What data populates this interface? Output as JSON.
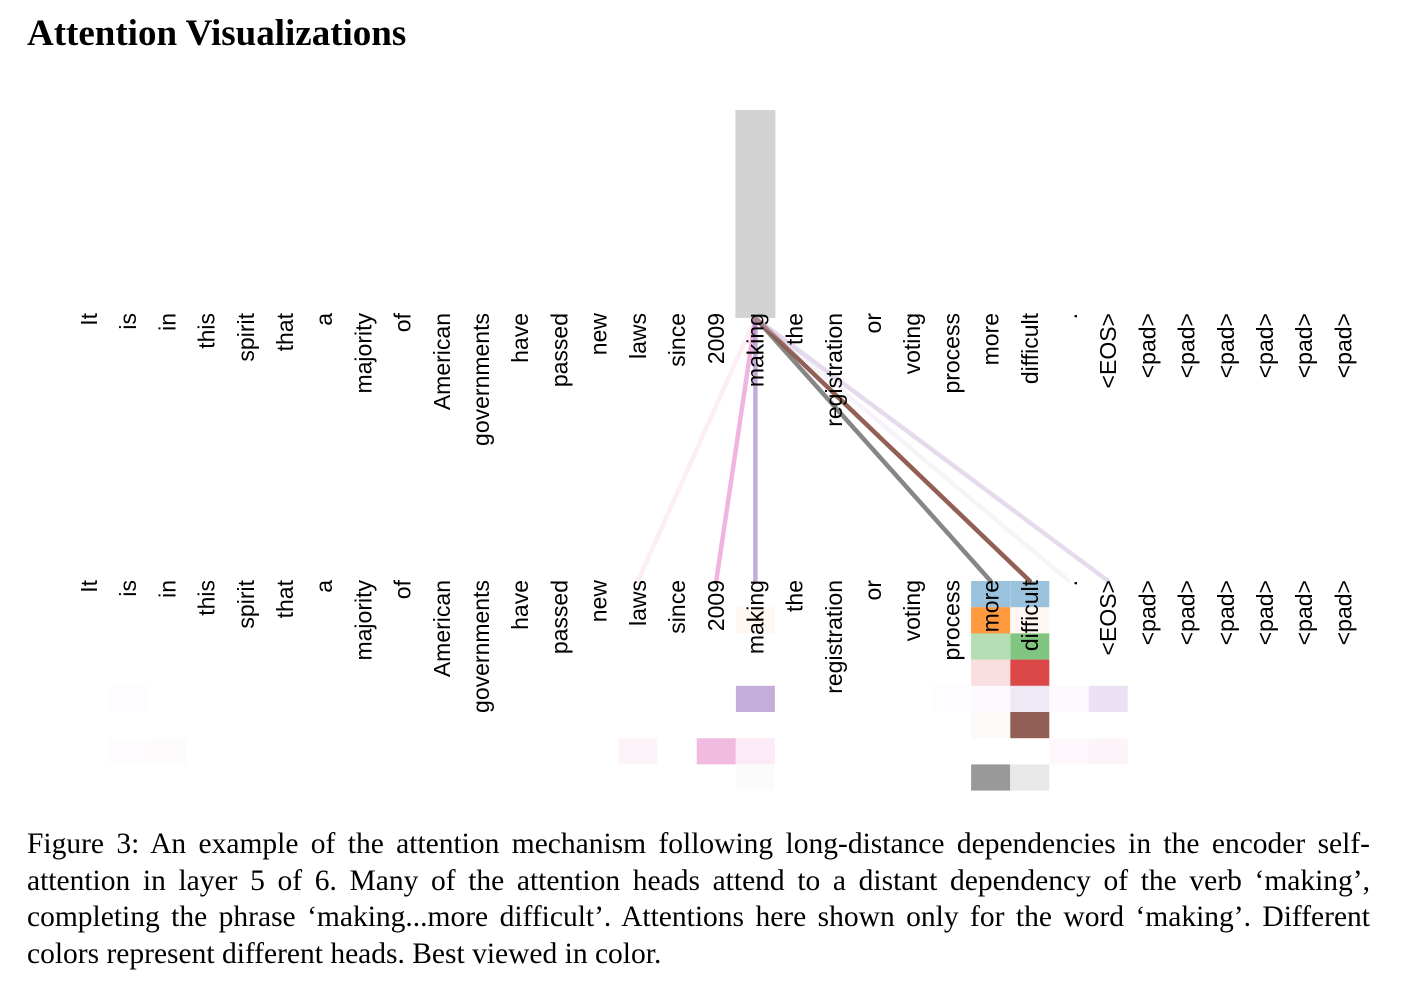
{
  "section_title": "Attention Visualizations",
  "figure": {
    "tokens": [
      "It",
      "is",
      "in",
      "this",
      "spirit",
      "that",
      "a",
      "majority",
      "of",
      "American",
      "governments",
      "have",
      "passed",
      "new",
      "laws",
      "since",
      "2009",
      "making",
      "the",
      "registration",
      "or",
      "voting",
      "process",
      "more",
      "difficult",
      ".",
      "<EOS>",
      "<pad>",
      "<pad>",
      "<pad>",
      "<pad>",
      "<pad>",
      "<pad>"
    ],
    "query_token_index": 17,
    "query_highlight_color": "#d3d3d3",
    "lines": [
      {
        "target": 14,
        "color": "#f7b6d2",
        "opacity": 0.25
      },
      {
        "target": 16,
        "color": "#e377c2",
        "opacity": 0.55
      },
      {
        "target": 17,
        "color": "#9467bd",
        "opacity": 0.55
      },
      {
        "target": 23,
        "color": "#7f7f7f",
        "opacity": 0.95
      },
      {
        "target": 24,
        "color": "#8c564b",
        "opacity": 0.95
      },
      {
        "target": 25,
        "color": "#c5b0d5",
        "opacity": 0.15
      },
      {
        "target": 26,
        "color": "#c5b0d5",
        "opacity": 0.45
      }
    ],
    "heads": [
      {
        "color": "#1f77b4",
        "cells": [
          {
            "t": 23,
            "w": 0.45
          },
          {
            "t": 24,
            "w": 0.45
          }
        ]
      },
      {
        "color": "#ff7f0e",
        "cells": [
          {
            "t": 17,
            "w": 0.06
          },
          {
            "t": 23,
            "w": 0.8
          },
          {
            "t": 24,
            "w": 0.06
          }
        ]
      },
      {
        "color": "#2ca02c",
        "cells": [
          {
            "t": 23,
            "w": 0.35
          },
          {
            "t": 24,
            "w": 0.6
          }
        ]
      },
      {
        "color": "#d62728",
        "cells": [
          {
            "t": 23,
            "w": 0.15
          },
          {
            "t": 24,
            "w": 0.85
          }
        ]
      },
      {
        "color": "#9467bd",
        "cells": [
          {
            "t": 1,
            "w": 0.02
          },
          {
            "t": 17,
            "w": 0.55
          },
          {
            "t": 22,
            "w": 0.02
          },
          {
            "t": 23,
            "w": 0.03
          },
          {
            "t": 24,
            "w": 0.15
          },
          {
            "t": 25,
            "w": 0.03
          },
          {
            "t": 26,
            "w": 0.2
          }
        ]
      },
      {
        "color": "#8c564b",
        "cells": [
          {
            "t": 23,
            "w": 0.03
          },
          {
            "t": 24,
            "w": 0.95
          }
        ]
      },
      {
        "color": "#e377c2",
        "cells": [
          {
            "t": 1,
            "w": 0.02
          },
          {
            "t": 2,
            "w": 0.03
          },
          {
            "t": 14,
            "w": 0.08
          },
          {
            "t": 16,
            "w": 0.5
          },
          {
            "t": 17,
            "w": 0.15
          },
          {
            "t": 25,
            "w": 0.05
          },
          {
            "t": 26,
            "w": 0.08
          }
        ]
      },
      {
        "color": "#7f7f7f",
        "cells": [
          {
            "t": 17,
            "w": 0.03
          },
          {
            "t": 23,
            "w": 0.8
          },
          {
            "t": 24,
            "w": 0.18
          }
        ]
      }
    ]
  },
  "caption": "Figure 3: An example of the attention mechanism following long-distance dependencies in the encoder self-attention in layer 5 of 6. Many of the attention heads attend to a distant dependency of the verb ‘making’, completing the phrase ‘making...more difficult’. Attentions here shown only for the word ‘making’. Different colors represent different heads. Best viewed in color."
}
